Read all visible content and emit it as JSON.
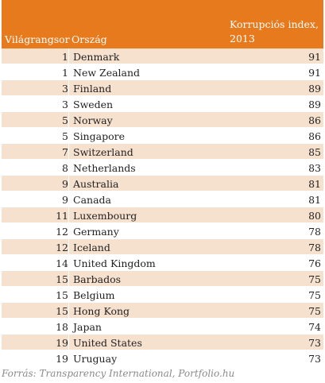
{
  "header": {
    "rank_label": "Világrangsor",
    "country_label": "Ország",
    "index_label_line1": "Korrupciós index,",
    "index_label_line2": "2013"
  },
  "rows": [
    {
      "rank": "1",
      "country": "Denmark",
      "index": "91"
    },
    {
      "rank": "1",
      "country": "New Zealand",
      "index": "91"
    },
    {
      "rank": "3",
      "country": "Finland",
      "index": "89"
    },
    {
      "rank": "3",
      "country": "Sweden",
      "index": "89"
    },
    {
      "rank": "5",
      "country": "Norway",
      "index": "86"
    },
    {
      "rank": "5",
      "country": "Singapore",
      "index": "86"
    },
    {
      "rank": "7",
      "country": "Switzerland",
      "index": "85"
    },
    {
      "rank": "8",
      "country": "Netherlands",
      "index": "83"
    },
    {
      "rank": "9",
      "country": "Australia",
      "index": "81"
    },
    {
      "rank": "9",
      "country": "Canada",
      "index": "81"
    },
    {
      "rank": "11",
      "country": "Luxembourg",
      "index": "80"
    },
    {
      "rank": "12",
      "country": "Germany",
      "index": "78"
    },
    {
      "rank": "12",
      "country": "Iceland",
      "index": "78"
    },
    {
      "rank": "14",
      "country": "United Kingdom",
      "index": "76"
    },
    {
      "rank": "15",
      "country": "Barbados",
      "index": "75"
    },
    {
      "rank": "15",
      "country": "Belgium",
      "index": "75"
    },
    {
      "rank": "15",
      "country": "Hong Kong",
      "index": "75"
    },
    {
      "rank": "18",
      "country": "Japan",
      "index": "74"
    },
    {
      "rank": "19",
      "country": "United States",
      "index": "73"
    },
    {
      "rank": "19",
      "country": "Uruguay",
      "index": "73"
    }
  ],
  "source": "Forrás: Transparency International, Portfolio.hu",
  "colors": {
    "header_bg": "#e87a1e",
    "stripe_bg": "#f6e1cf"
  }
}
